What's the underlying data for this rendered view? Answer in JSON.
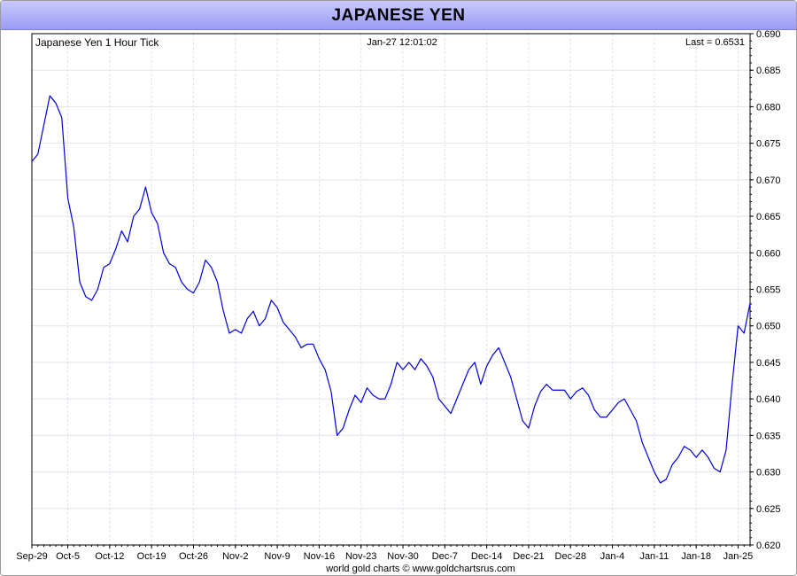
{
  "chart_data": {
    "type": "line",
    "title": "JAPANESE YEN",
    "subtitle_left": "Japanese Yen 1 Hour Tick",
    "subtitle_center": "Jan-27  12:01:02",
    "subtitle_right": "Last = 0.6531",
    "footer": "world gold charts © www.goldchartsrus.com",
    "ylim": [
      0.62,
      0.69
    ],
    "y_ticks": [
      "0.690",
      "0.685",
      "0.680",
      "0.675",
      "0.670",
      "0.665",
      "0.660",
      "0.655",
      "0.650",
      "0.645",
      "0.640",
      "0.635",
      "0.630",
      "0.625",
      "0.620"
    ],
    "x_ticks": [
      "Sep-29",
      "Oct-5",
      "Oct-12",
      "Oct-19",
      "Oct-26",
      "Nov-2",
      "Nov-9",
      "Nov-16",
      "Nov-23",
      "Nov-30",
      "Dec-7",
      "Dec-14",
      "Dec-21",
      "Dec-28",
      "Jan-4",
      "Jan-11",
      "Jan-18",
      "Jan-25"
    ],
    "x_tick_index": [
      0,
      6,
      13,
      20,
      27,
      34,
      41,
      48,
      55,
      62,
      69,
      76,
      83,
      90,
      97,
      104,
      111,
      118
    ],
    "grid": true,
    "line_color": "#0000dd",
    "series": [
      {
        "x": [
          0,
          1,
          2,
          3,
          4,
          5,
          6,
          7,
          8,
          9,
          10,
          11,
          12,
          13,
          14,
          15,
          16,
          17,
          18,
          19,
          20,
          21,
          22,
          23,
          24,
          25,
          26,
          27,
          28,
          29,
          30,
          31,
          32,
          33,
          34,
          35,
          36,
          37,
          38,
          39,
          40,
          41,
          42,
          43,
          44,
          45,
          46,
          47,
          48,
          49,
          50,
          51,
          52,
          53,
          54,
          55,
          56,
          57,
          58,
          59,
          60,
          61,
          62,
          63,
          64,
          65,
          66,
          67,
          68,
          69,
          70,
          71,
          72,
          73,
          74,
          75,
          76,
          77,
          78,
          79,
          80,
          81,
          82,
          83,
          84,
          85,
          86,
          87,
          88,
          89,
          90,
          91,
          92,
          93,
          94,
          95,
          96,
          97,
          98,
          99,
          100,
          101,
          102,
          103,
          104,
          105,
          106,
          107,
          108,
          109,
          110,
          111,
          112,
          113,
          114,
          115,
          116,
          117,
          118,
          119,
          120
        ],
        "values": [
          0.6725,
          0.6735,
          0.6775,
          0.6815,
          0.6805,
          0.6785,
          0.6675,
          0.6635,
          0.656,
          0.654,
          0.6535,
          0.655,
          0.658,
          0.6585,
          0.6605,
          0.663,
          0.6615,
          0.665,
          0.666,
          0.669,
          0.6655,
          0.664,
          0.66,
          0.6585,
          0.658,
          0.656,
          0.655,
          0.6545,
          0.656,
          0.659,
          0.658,
          0.656,
          0.652,
          0.649,
          0.6495,
          0.649,
          0.651,
          0.652,
          0.65,
          0.651,
          0.6535,
          0.6525,
          0.6505,
          0.6495,
          0.6485,
          0.647,
          0.6475,
          0.6475,
          0.6455,
          0.644,
          0.641,
          0.635,
          0.636,
          0.6385,
          0.6405,
          0.6395,
          0.6415,
          0.6405,
          0.64,
          0.64,
          0.642,
          0.645,
          0.644,
          0.645,
          0.644,
          0.6455,
          0.6445,
          0.643,
          0.64,
          0.639,
          0.638,
          0.64,
          0.642,
          0.644,
          0.645,
          0.642,
          0.6445,
          0.646,
          0.647,
          0.645,
          0.643,
          0.64,
          0.637,
          0.636,
          0.639,
          0.641,
          0.642,
          0.6412,
          0.6412,
          0.6412,
          0.64,
          0.641,
          0.6415,
          0.6405,
          0.6385,
          0.6375,
          0.6375,
          0.6385,
          0.6395,
          0.64,
          0.6385,
          0.637,
          0.634,
          0.632,
          0.63,
          0.6285,
          0.629,
          0.631,
          0.632,
          0.6335,
          0.633,
          0.632,
          0.633,
          0.632,
          0.6305,
          0.63,
          0.633,
          0.642,
          0.65,
          0.649,
          0.6531
        ]
      }
    ]
  }
}
